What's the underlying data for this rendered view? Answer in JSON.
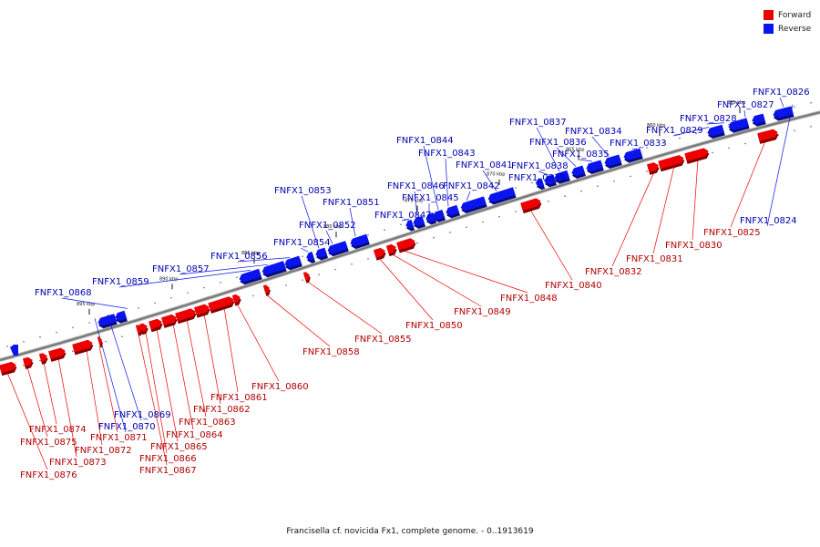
{
  "legend": {
    "forward_label": "Forward",
    "reverse_label": "Reverse",
    "forward_color": "#ee0000",
    "reverse_color": "#0a14ee"
  },
  "caption": "Francisella cf. novicida Fx1, complete genome. - 0..1913619",
  "ticks": [
    "855 kbp",
    "860 kbp",
    "865 kbp",
    "870 kbp",
    "875 kbp",
    "880 kbp",
    "885 kbp",
    "890 kbp",
    "895 kbp"
  ],
  "genes": [
    {
      "name": "FNFX1_0824",
      "strand": "reverse"
    },
    {
      "name": "FNFX1_0825",
      "strand": "forward"
    },
    {
      "name": "FNFX1_0826",
      "strand": "reverse"
    },
    {
      "name": "FNFX1_0827",
      "strand": "reverse"
    },
    {
      "name": "FNFX1_0828",
      "strand": "reverse"
    },
    {
      "name": "FNFX1_0829",
      "strand": "reverse"
    },
    {
      "name": "FNFX1_0830",
      "strand": "forward"
    },
    {
      "name": "FNFX1_0831",
      "strand": "forward"
    },
    {
      "name": "FNFX1_0832",
      "strand": "forward"
    },
    {
      "name": "FNFX1_0833",
      "strand": "reverse"
    },
    {
      "name": "FNFX1_0834",
      "strand": "reverse"
    },
    {
      "name": "FNFX1_0835",
      "strand": "reverse"
    },
    {
      "name": "FNFX1_0836",
      "strand": "reverse"
    },
    {
      "name": "FNFX1_0837",
      "strand": "reverse"
    },
    {
      "name": "FNFX1_0838",
      "strand": "reverse"
    },
    {
      "name": "FNFX1_0839",
      "strand": "reverse"
    },
    {
      "name": "FNFX1_0840",
      "strand": "forward"
    },
    {
      "name": "FNFX1_0841",
      "strand": "reverse"
    },
    {
      "name": "FNFX1_0842",
      "strand": "reverse"
    },
    {
      "name": "FNFX1_0843",
      "strand": "reverse"
    },
    {
      "name": "FNFX1_0844",
      "strand": "reverse"
    },
    {
      "name": "FNFX1_0845",
      "strand": "reverse"
    },
    {
      "name": "FNFX1_0846",
      "strand": "reverse"
    },
    {
      "name": "FNFX1_0847",
      "strand": "reverse"
    },
    {
      "name": "FNFX1_0848",
      "strand": "forward"
    },
    {
      "name": "FNFX1_0849",
      "strand": "forward"
    },
    {
      "name": "FNFX1_0850",
      "strand": "forward"
    },
    {
      "name": "FNFX1_0851",
      "strand": "reverse"
    },
    {
      "name": "FNFX1_0852",
      "strand": "reverse"
    },
    {
      "name": "FNFX1_0853",
      "strand": "reverse"
    },
    {
      "name": "FNFX1_0854",
      "strand": "reverse"
    },
    {
      "name": "FNFX1_0855",
      "strand": "forward"
    },
    {
      "name": "FNFX1_0856",
      "strand": "reverse"
    },
    {
      "name": "FNFX1_0857",
      "strand": "reverse"
    },
    {
      "name": "FNFX1_0858",
      "strand": "forward"
    },
    {
      "name": "FNFX1_0859",
      "strand": "reverse"
    },
    {
      "name": "FNFX1_0860",
      "strand": "forward"
    },
    {
      "name": "FNFX1_0861",
      "strand": "forward"
    },
    {
      "name": "FNFX1_0862",
      "strand": "forward"
    },
    {
      "name": "FNFX1_0863",
      "strand": "forward"
    },
    {
      "name": "FNFX1_0864",
      "strand": "forward"
    },
    {
      "name": "FNFX1_0865",
      "strand": "forward"
    },
    {
      "name": "FNFX1_0866",
      "strand": "forward"
    },
    {
      "name": "FNFX1_0867",
      "strand": "forward"
    },
    {
      "name": "FNFX1_0868",
      "strand": "reverse"
    },
    {
      "name": "FNFX1_0869",
      "strand": "reverse"
    },
    {
      "name": "FNFX1_0870",
      "strand": "reverse"
    },
    {
      "name": "FNFX1_0871",
      "strand": "forward"
    },
    {
      "name": "FNFX1_0872",
      "strand": "forward"
    },
    {
      "name": "FNFX1_0873",
      "strand": "forward"
    },
    {
      "name": "FNFX1_0874",
      "strand": "forward"
    },
    {
      "name": "FNFX1_0875",
      "strand": "forward"
    },
    {
      "name": "FNFX1_0876",
      "strand": "forward"
    }
  ]
}
